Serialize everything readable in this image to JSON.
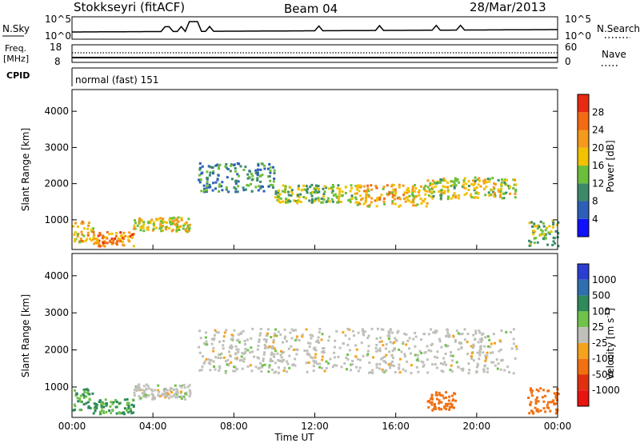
{
  "header": {
    "radar": "Stokkseyri (fitACF)",
    "beam": "Beam 04",
    "date": "28/Mar/2013"
  },
  "top_panels": {
    "nsky_label": "N.Sky",
    "nsky_ticks": [
      "10^5",
      "10^0"
    ],
    "nsearch_label": "N.Search",
    "nsearch_ticks": [
      "10^5",
      "10^0"
    ],
    "freq_label": "Freq.",
    "freq_unit": "[MHz]",
    "freq_ticks": [
      "18",
      "8"
    ],
    "nave_label": "Nave",
    "nave_ticks": [
      "60",
      "0"
    ],
    "cpid_label": "CPID",
    "cpid_value": "normal (fast) 151"
  },
  "axes": {
    "ylabel": "Slant Range [km]",
    "xlabel": "Time UT",
    "y_ticks": [
      "1000",
      "2000",
      "3000",
      "4000"
    ],
    "x_ticks": [
      "00:00",
      "04:00",
      "08:00",
      "12:00",
      "16:00",
      "20:00",
      "00:00"
    ]
  },
  "colorbars": {
    "power": {
      "title": "Power [dB]",
      "ticks": [
        "4",
        "8",
        "12",
        "16",
        "20",
        "24",
        "28"
      ],
      "colors": [
        "#1010ff",
        "#2c5fb8",
        "#3d8a6a",
        "#6cbf3a",
        "#f2c200",
        "#f59a1a",
        "#f26a12",
        "#e82a10"
      ]
    },
    "velocity": {
      "title": "Velocity [m s",
      "title_sup": "-1",
      "title_end": "]",
      "ticks": [
        "1000",
        "500",
        "100",
        "25",
        "-25",
        "-100",
        "-500",
        "-1000"
      ],
      "colors": [
        "#2a3fd1",
        "#2f6fb0",
        "#2e8a5a",
        "#6fc24a",
        "#c0c0bb",
        "#f5a21c",
        "#f27012",
        "#e03010",
        "#e8140f"
      ]
    }
  },
  "chart_data": [
    {
      "type": "line",
      "title": "N.Sky",
      "x_range_ut_hours": [
        0,
        24
      ],
      "log_scale": true,
      "ylim": [
        "10^0",
        "10^5"
      ],
      "series": [
        {
          "name": "N.Sky",
          "description_values": "near-constant level with spikes near 06:00"
        }
      ]
    },
    {
      "type": "line",
      "title": "Freq. [MHz]",
      "x_range_ut_hours": [
        0,
        24
      ],
      "ylim": [
        8,
        18
      ],
      "series": [
        {
          "name": "Freq.",
          "x": [
            0,
            24
          ],
          "y": [
            10,
            10
          ]
        },
        {
          "name": "Nave",
          "x": [
            0,
            24
          ],
          "y": [
            30,
            30
          ],
          "ylim": [
            0,
            60
          ]
        }
      ]
    },
    {
      "type": "heatmap",
      "title": "Power [dB]",
      "xlabel": "Time UT",
      "ylabel": "Slant Range [km]",
      "x_range_ut_hours": [
        0,
        24
      ],
      "ylim_km": [
        180,
        4600
      ],
      "colorbar_range": [
        0,
        30
      ],
      "regions": [
        {
          "x": [
            0.0,
            1.0
          ],
          "y": [
            400,
            1000
          ],
          "value": 20
        },
        {
          "x": [
            1.0,
            3.0
          ],
          "y": [
            300,
            700
          ],
          "value": 24
        },
        {
          "x": [
            3.0,
            5.8
          ],
          "y": [
            700,
            1100
          ],
          "value": 18
        },
        {
          "x": [
            6.2,
            10.0
          ],
          "y": [
            1800,
            2600
          ],
          "value": 10
        },
        {
          "x": [
            10.0,
            14.0
          ],
          "y": [
            1500,
            2000
          ],
          "value": 14
        },
        {
          "x": [
            14.0,
            17.5
          ],
          "y": [
            1400,
            2000
          ],
          "value": 20
        },
        {
          "x": [
            17.5,
            22.0
          ],
          "y": [
            1600,
            2200
          ],
          "value": 16
        },
        {
          "x": [
            22.5,
            24.0
          ],
          "y": [
            300,
            1000
          ],
          "value": 14
        }
      ]
    },
    {
      "type": "heatmap",
      "title": "Velocity [m s-1]",
      "xlabel": "Time UT",
      "ylabel": "Slant Range [km]",
      "x_range_ut_hours": [
        0,
        24
      ],
      "ylim_km": [
        180,
        4600
      ],
      "colorbar_levels": [
        1000,
        500,
        100,
        25,
        -25,
        -100,
        -500,
        -1000
      ],
      "regions": [
        {
          "x": [
            0.0,
            1.0
          ],
          "y": [
            400,
            1000
          ],
          "value": 100
        },
        {
          "x": [
            1.0,
            3.0
          ],
          "y": [
            300,
            700
          ],
          "value": 100
        },
        {
          "x": [
            3.0,
            5.8
          ],
          "y": [
            700,
            1100
          ],
          "value": 0
        },
        {
          "x": [
            6.2,
            22.0
          ],
          "y": [
            1400,
            2600
          ],
          "value": 0
        },
        {
          "x": [
            17.5,
            19.0
          ],
          "y": [
            400,
            900
          ],
          "value": -300
        },
        {
          "x": [
            22.5,
            24.0
          ],
          "y": [
            300,
            1000
          ],
          "value": -300
        }
      ]
    }
  ]
}
